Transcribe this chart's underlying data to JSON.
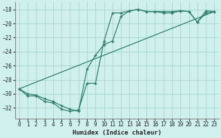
{
  "xlabel": "Humidex (Indice chaleur)",
  "xlim": [
    -0.5,
    23.5
  ],
  "ylim": [
    -33.5,
    -17.0
  ],
  "yticks": [
    -32,
    -30,
    -28,
    -26,
    -24,
    -22,
    -20,
    -18
  ],
  "xticks": [
    0,
    1,
    2,
    3,
    4,
    5,
    6,
    7,
    8,
    9,
    10,
    11,
    12,
    13,
    14,
    15,
    16,
    17,
    18,
    19,
    20,
    21,
    22,
    23
  ],
  "bg_color": "#cff0ec",
  "grid_color": "#aad8d2",
  "line_color": "#2e7d6e",
  "line1_x": [
    0,
    1,
    2,
    3,
    4,
    5,
    6,
    7,
    8,
    9,
    10,
    11,
    12,
    13,
    14,
    15,
    16,
    17,
    18,
    19,
    20,
    21,
    22,
    23
  ],
  "line1_y": [
    -29.3,
    -30.3,
    -30.3,
    -31.1,
    -31.3,
    -32.2,
    -32.5,
    -32.3,
    -28.5,
    -28.5,
    -22.5,
    -18.5,
    -18.5,
    -18.2,
    -18.0,
    -18.3,
    -18.3,
    -18.5,
    -18.5,
    -18.2,
    -18.3,
    -19.8,
    -18.5,
    -18.3
  ],
  "line2_x": [
    0,
    1,
    2,
    3,
    4,
    5,
    6,
    7,
    8,
    9,
    10,
    11,
    12,
    13,
    14,
    15,
    16,
    17,
    18,
    19,
    20,
    21,
    22,
    23
  ],
  "line2_y": [
    -29.3,
    -30.0,
    -30.2,
    -30.7,
    -31.1,
    -31.7,
    -32.2,
    -32.5,
    -26.5,
    -24.5,
    -23.0,
    -22.5,
    -19.0,
    -18.2,
    -18.0,
    -18.3,
    -18.3,
    -18.3,
    -18.3,
    -18.2,
    -18.3,
    -19.8,
    -18.2,
    -18.3
  ],
  "line3_x": [
    0,
    23
  ],
  "line3_y": [
    -29.3,
    -18.3
  ]
}
